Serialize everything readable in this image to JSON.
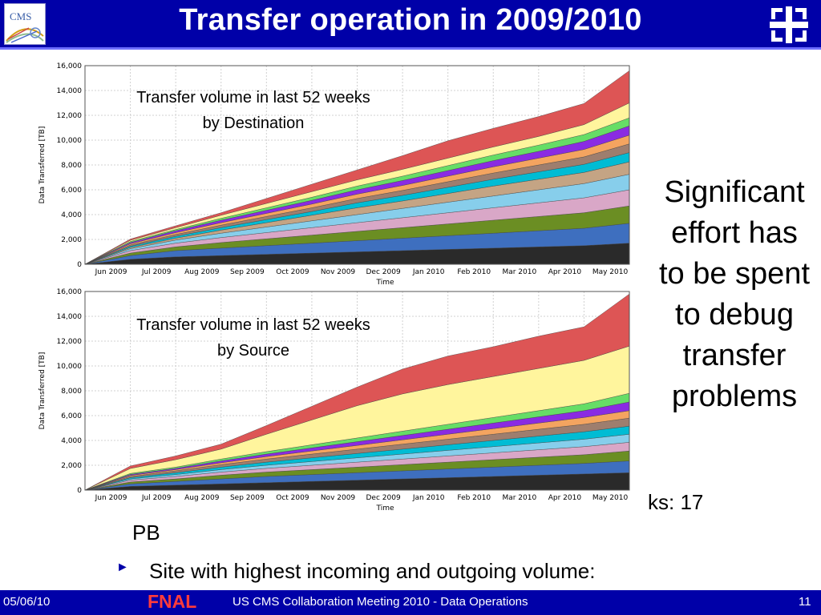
{
  "slide": {
    "title": "Transfer operation in 2009/2010",
    "cms_logo_text": "CMS",
    "side_text": [
      "Significant",
      "effort has",
      "to be spent",
      "to debug",
      "transfer",
      "problems"
    ],
    "partial_text": "ks: 17",
    "pb_text": "PB",
    "bullet_text": "Site with highest incoming and outgoing volume:",
    "footer": {
      "date": "05/06/10",
      "fnal": "FNAL",
      "center": "US CMS Collaboration Meeting 2010 - Data Operations",
      "page": "11"
    }
  },
  "chart_data": [
    {
      "type": "area",
      "title": "Transfer volume in last 52 weeks by Destination",
      "title_lines": [
        "Transfer volume in last 52 weeks",
        "by Destination"
      ],
      "xlabel": "Time",
      "ylabel": "Data Transferred [TB]",
      "ylim": [
        0,
        16000
      ],
      "yticks": [
        "0",
        "2,000",
        "4,000",
        "6,000",
        "8,000",
        "10,000",
        "12,000",
        "14,000",
        "16,000"
      ],
      "x_tick_labels": [
        "Jun 2009",
        "Jul 2009",
        "Aug 2009",
        "Sep 2009",
        "Oct 2009",
        "Nov 2009",
        "Dec 2009",
        "Jan 2010",
        "Feb 2010",
        "Mar 2010",
        "Apr 2010",
        "May 2010"
      ],
      "grid": true,
      "x": [
        "May 2009",
        "Jun 2009",
        "Jul 2009",
        "Aug 2009",
        "Sep 2009",
        "Oct 2009",
        "Nov 2009",
        "Dec 2009",
        "Jan 2010",
        "Feb 2010",
        "Mar 2010",
        "Apr 2010",
        "May 2010"
      ],
      "series": [
        {
          "color": "#2a2a2a",
          "values": [
            0,
            400,
            600,
            700,
            800,
            900,
            1000,
            1100,
            1200,
            1300,
            1400,
            1500,
            1700
          ]
        },
        {
          "color": "#3e6fbf",
          "values": [
            0,
            300,
            500,
            600,
            700,
            800,
            900,
            1000,
            1100,
            1200,
            1300,
            1400,
            1600
          ]
        },
        {
          "color": "#6b8e23",
          "values": [
            0,
            200,
            300,
            450,
            550,
            650,
            750,
            850,
            950,
            1050,
            1150,
            1250,
            1400
          ]
        },
        {
          "color": "#d9a7c7",
          "values": [
            0,
            200,
            300,
            400,
            500,
            600,
            700,
            800,
            900,
            1000,
            1100,
            1200,
            1300
          ]
        },
        {
          "color": "#87ceeb",
          "values": [
            0,
            150,
            250,
            350,
            450,
            550,
            650,
            750,
            850,
            950,
            1050,
            1150,
            1250
          ]
        },
        {
          "color": "#c4a484",
          "values": [
            0,
            100,
            150,
            250,
            350,
            450,
            550,
            600,
            700,
            800,
            850,
            900,
            1000
          ]
        },
        {
          "color": "#00bcd4",
          "values": [
            0,
            100,
            150,
            200,
            250,
            300,
            400,
            450,
            500,
            550,
            600,
            650,
            750
          ]
        },
        {
          "color": "#9e7e6e",
          "values": [
            0,
            100,
            150,
            200,
            250,
            300,
            350,
            400,
            450,
            500,
            550,
            600,
            700
          ]
        },
        {
          "color": "#f4a460",
          "values": [
            0,
            100,
            150,
            200,
            250,
            300,
            350,
            400,
            450,
            500,
            550,
            600,
            700
          ]
        },
        {
          "color": "#8a2be2",
          "values": [
            0,
            100,
            150,
            200,
            250,
            300,
            350,
            400,
            450,
            500,
            550,
            650,
            750
          ]
        },
        {
          "color": "#66dd66",
          "values": [
            0,
            80,
            100,
            150,
            200,
            250,
            300,
            350,
            400,
            450,
            500,
            550,
            650
          ]
        },
        {
          "color": "#fff59d",
          "values": [
            0,
            100,
            150,
            250,
            350,
            450,
            500,
            550,
            600,
            650,
            700,
            800,
            1200
          ]
        },
        {
          "color": "#dd5555",
          "values": [
            0,
            100,
            150,
            200,
            400,
            600,
            800,
            1100,
            1400,
            1500,
            1600,
            1700,
            2600
          ]
        }
      ]
    },
    {
      "type": "area",
      "title": "Transfer volume in last 52 weeks by Source",
      "title_lines": [
        "Transfer volume in last 52 weeks",
        "by Source"
      ],
      "xlabel": "Time",
      "ylabel": "Data Transferred [TB]",
      "ylim": [
        0,
        16000
      ],
      "yticks": [
        "0",
        "2,000",
        "4,000",
        "6,000",
        "8,000",
        "10,000",
        "12,000",
        "14,000",
        "16,000"
      ],
      "x_tick_labels": [
        "Jun 2009",
        "Jul 2009",
        "Aug 2009",
        "Sep 2009",
        "Oct 2009",
        "Nov 2009",
        "Dec 2009",
        "Jan 2010",
        "Feb 2010",
        "Mar 2010",
        "Apr 2010",
        "May 2010"
      ],
      "grid": true,
      "x": [
        "May 2009",
        "Jun 2009",
        "Jul 2009",
        "Aug 2009",
        "Sep 2009",
        "Oct 2009",
        "Nov 2009",
        "Dec 2009",
        "Jan 2010",
        "Feb 2010",
        "Mar 2010",
        "Apr 2010",
        "May 2010"
      ],
      "series": [
        {
          "color": "#2a2a2a",
          "values": [
            0,
            300,
            400,
            500,
            600,
            700,
            800,
            900,
            1000,
            1100,
            1200,
            1300,
            1400
          ]
        },
        {
          "color": "#3e6fbf",
          "values": [
            0,
            200,
            300,
            400,
            500,
            550,
            600,
            650,
            700,
            750,
            800,
            850,
            950
          ]
        },
        {
          "color": "#6b8e23",
          "values": [
            0,
            150,
            200,
            300,
            350,
            400,
            450,
            500,
            550,
            600,
            650,
            700,
            800
          ]
        },
        {
          "color": "#d9a7c7",
          "values": [
            0,
            150,
            200,
            250,
            300,
            350,
            400,
            450,
            500,
            550,
            600,
            650,
            700
          ]
        },
        {
          "color": "#87ceeb",
          "values": [
            0,
            100,
            150,
            200,
            250,
            300,
            350,
            400,
            450,
            500,
            550,
            600,
            650
          ]
        },
        {
          "color": "#00bcd4",
          "values": [
            0,
            100,
            150,
            200,
            250,
            300,
            350,
            400,
            450,
            500,
            550,
            600,
            650
          ]
        },
        {
          "color": "#9e7e6e",
          "values": [
            0,
            100,
            150,
            200,
            250,
            300,
            350,
            400,
            450,
            500,
            550,
            600,
            650
          ]
        },
        {
          "color": "#f4a460",
          "values": [
            0,
            80,
            100,
            150,
            200,
            250,
            300,
            350,
            400,
            450,
            500,
            550,
            600
          ]
        },
        {
          "color": "#8a2be2",
          "values": [
            0,
            80,
            100,
            150,
            200,
            250,
            300,
            350,
            400,
            450,
            500,
            550,
            700
          ]
        },
        {
          "color": "#66dd66",
          "values": [
            0,
            80,
            100,
            150,
            200,
            250,
            300,
            350,
            400,
            450,
            500,
            550,
            700
          ]
        },
        {
          "color": "#fff59d",
          "values": [
            0,
            400,
            600,
            800,
            1400,
            2000,
            2600,
            3000,
            3200,
            3300,
            3400,
            3500,
            3800
          ]
        },
        {
          "color": "#dd5555",
          "values": [
            0,
            200,
            300,
            400,
            700,
            1100,
            1500,
            2000,
            2300,
            2400,
            2600,
            2700,
            4200
          ]
        }
      ]
    }
  ]
}
